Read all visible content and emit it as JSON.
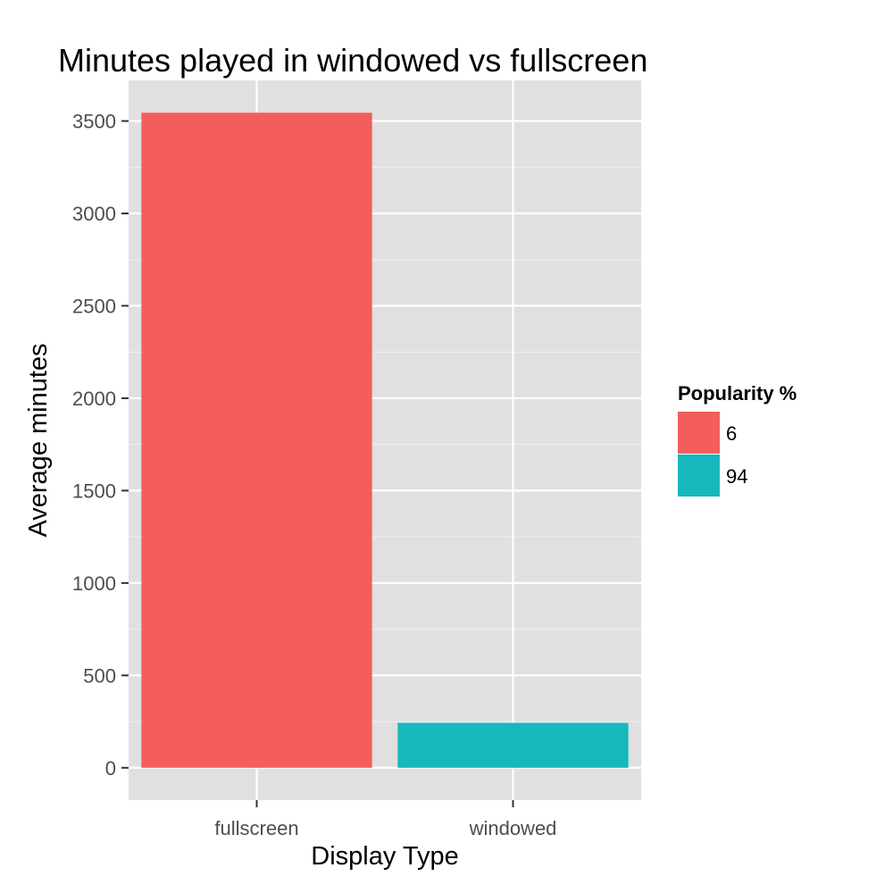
{
  "chart_data": {
    "type": "bar",
    "title": "Minutes played in windowed vs fullscreen",
    "xlabel": "Display Type",
    "ylabel": "Average minutes",
    "categories": [
      "fullscreen",
      "windowed"
    ],
    "values": [
      3545,
      243
    ],
    "bar_colors": [
      "#F35E5A",
      "#17B8BC"
    ],
    "ylim": [
      -175,
      3720
    ],
    "yticks": [
      0,
      500,
      1000,
      1500,
      2000,
      2500,
      3000,
      3500
    ],
    "ytick_labels": [
      "0",
      "500",
      "1000",
      "1500",
      "2000",
      "2500",
      "3000",
      "3500"
    ],
    "grid": true,
    "panel_background": "#E0E0E0",
    "grid_color": "#FFFFFF",
    "legend": {
      "title": "Popularity %",
      "position": "right",
      "items": [
        {
          "label": "6",
          "color": "#F35E5A"
        },
        {
          "label": "94",
          "color": "#17B8BC"
        }
      ]
    }
  }
}
